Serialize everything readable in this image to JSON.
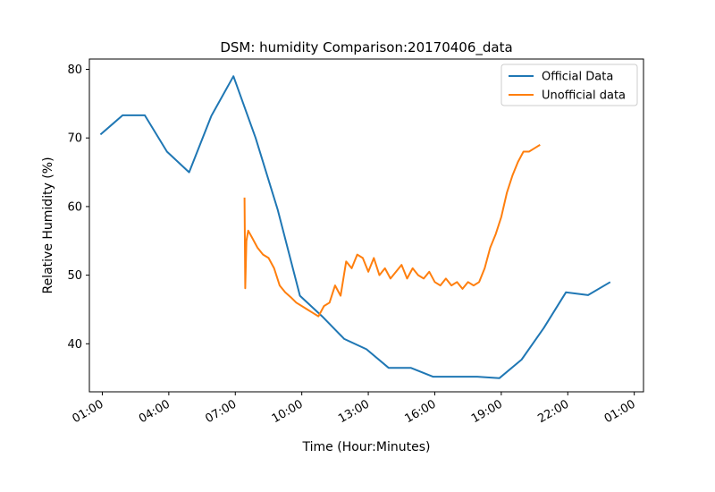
{
  "chart_data": {
    "type": "line",
    "title": "DSM: humidity Comparison:20170406_data",
    "xlabel": "Time (Hour:Minutes)",
    "ylabel": "Relative Humidity (%)",
    "xlim": [
      "2017-04-06 00:25",
      "2017-04-07 01:25"
    ],
    "ylim": [
      33,
      81.5
    ],
    "x_ticks": [
      "01:00",
      "04:00",
      "07:00",
      "10:00",
      "13:00",
      "16:00",
      "19:00",
      "22:00",
      "01:00"
    ],
    "y_ticks": [
      40,
      50,
      60,
      70,
      80
    ],
    "legend_position": "top-right",
    "grid": false,
    "series": [
      {
        "name": "Official Data",
        "color": "#1f77b4",
        "x": [
          "2017-04-06 00:55",
          "2017-04-06 01:55",
          "2017-04-06 02:55",
          "2017-04-06 03:55",
          "2017-04-06 04:55",
          "2017-04-06 05:55",
          "2017-04-06 06:55",
          "2017-04-06 07:55",
          "2017-04-06 08:55",
          "2017-04-06 09:55",
          "2017-04-06 10:55",
          "2017-04-06 11:55",
          "2017-04-06 12:55",
          "2017-04-06 13:55",
          "2017-04-06 14:55",
          "2017-04-06 15:55",
          "2017-04-06 16:55",
          "2017-04-06 17:55",
          "2017-04-06 18:55",
          "2017-04-06 19:55",
          "2017-04-06 20:55",
          "2017-04-06 21:55",
          "2017-04-06 22:55",
          "2017-04-06 23:55"
        ],
        "values": [
          70.5,
          73.3,
          73.3,
          68.0,
          65.0,
          73.2,
          79.0,
          70.0,
          59.5,
          47.0,
          44.0,
          40.7,
          39.2,
          36.5,
          36.5,
          35.2,
          35.2,
          35.2,
          35.0,
          37.7,
          42.3,
          47.5,
          47.1,
          49.0
        ]
      },
      {
        "name": "Unofficial data",
        "color": "#ff7f0e",
        "x": [
          "2017-04-06 07:25",
          "2017-04-06 07:27",
          "2017-04-06 07:30",
          "2017-04-06 07:35",
          "2017-04-06 07:45",
          "2017-04-06 08:00",
          "2017-04-06 08:15",
          "2017-04-06 08:30",
          "2017-04-06 08:45",
          "2017-04-06 09:00",
          "2017-04-06 09:15",
          "2017-04-06 09:30",
          "2017-04-06 09:45",
          "2017-04-06 10:00",
          "2017-04-06 10:15",
          "2017-04-06 10:30",
          "2017-04-06 10:45",
          "2017-04-06 11:00",
          "2017-04-06 11:15",
          "2017-04-06 11:30",
          "2017-04-06 11:45",
          "2017-04-06 12:00",
          "2017-04-06 12:15",
          "2017-04-06 12:30",
          "2017-04-06 12:45",
          "2017-04-06 13:00",
          "2017-04-06 13:15",
          "2017-04-06 13:30",
          "2017-04-06 13:45",
          "2017-04-06 14:00",
          "2017-04-06 14:15",
          "2017-04-06 14:30",
          "2017-04-06 14:45",
          "2017-04-06 15:00",
          "2017-04-06 15:15",
          "2017-04-06 15:30",
          "2017-04-06 15:45",
          "2017-04-06 16:00",
          "2017-04-06 16:15",
          "2017-04-06 16:30",
          "2017-04-06 16:45",
          "2017-04-06 17:00",
          "2017-04-06 17:15",
          "2017-04-06 17:30",
          "2017-04-06 17:45",
          "2017-04-06 18:00",
          "2017-04-06 18:15",
          "2017-04-06 18:30",
          "2017-04-06 18:45",
          "2017-04-06 19:00",
          "2017-04-06 19:15",
          "2017-04-06 19:30",
          "2017-04-06 19:45",
          "2017-04-06 20:00",
          "2017-04-06 20:15",
          "2017-04-06 20:30",
          "2017-04-06 20:45"
        ],
        "values": [
          61.3,
          48.1,
          55.0,
          56.5,
          55.5,
          54.0,
          53.0,
          52.5,
          51.0,
          48.5,
          47.5,
          46.8,
          46.0,
          45.5,
          45.0,
          44.5,
          44.0,
          45.5,
          46.0,
          48.5,
          47.0,
          52.0,
          51.0,
          53.0,
          52.5,
          50.5,
          52.5,
          50.0,
          51.0,
          49.5,
          50.5,
          51.5,
          49.5,
          51.0,
          50.0,
          49.5,
          50.5,
          49.0,
          48.5,
          49.5,
          48.5,
          49.0,
          48.0,
          49.0,
          48.5,
          49.0,
          51.0,
          54.0,
          56.0,
          58.5,
          62.0,
          64.5,
          66.5,
          68.0,
          68.0,
          68.5,
          69.0
        ]
      }
    ]
  }
}
